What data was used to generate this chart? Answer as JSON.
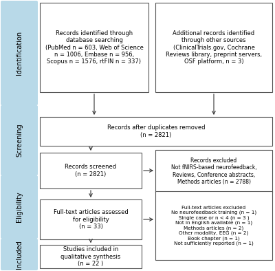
{
  "bg_color": "#ffffff",
  "sidebar_color": "#b8d9e8",
  "box_edge_color": "#555555",
  "arrow_color": "#333333",
  "sidebar_labels": [
    "Identification",
    "Screening",
    "Eligibility",
    "Included"
  ],
  "box1_left_text": "Records identified through\ndatabase searching\n(PubMed n = 603, Web of Science\nn = 1006, Embase n = 956,\nScopus n = 1576, rtFIN n = 337)",
  "box1_right_text": "Additional records identified\nthrough other sources\n(ClinicalTrials.gov, Cochrane\nReviews library, preprint servers,\nOSF platform, n = 3)",
  "box2_text": "Records after duplicates removed\n(n = 2821)",
  "box3_left_text": "Records screened\n(n = 2821)",
  "box3_right_text": "Records excluded\nNot fNIRS-based neurofeedback,\nReviews, Conference abstracts,\nMethods articles (n = 2788)",
  "box4_left_text": "Full-text articles assessed\nfor eligibility\n(n = 33)",
  "box4_right_text": "Full-text articles excluded\nNo neurofeedback training (n = 1)\nSingle case or n < 4 (n = 3 )\nNot in English available (n = 1)\nMethods articles (n = 2)\nOther modality, EEG (n = 2)\nBook chapter (n = 1)\nNot sufficiently reported (n = 1)",
  "box5_left_text": "Studies included in\nqualitative synthesis\n(n = 22 )",
  "fontsize": 6.0,
  "sidebar_fontsize": 7.0
}
